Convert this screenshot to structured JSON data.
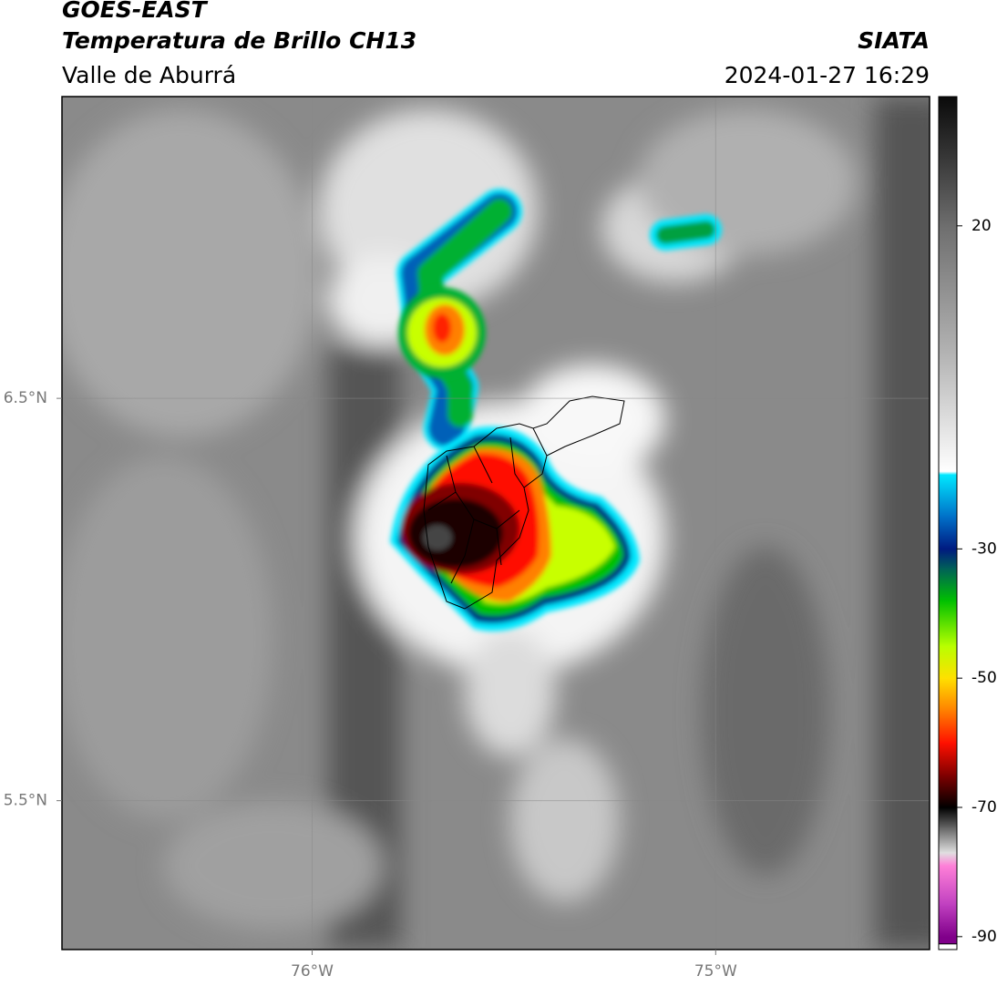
{
  "header": {
    "line1": "GOES-EAST",
    "line2": "Temperatura de Brillo CH13",
    "region": "Valle de Aburrá",
    "agency": "SIATA",
    "datetime": "2024-01-27 16:29"
  },
  "chart_data": {
    "type": "map",
    "xlim": [
      -76.62,
      -74.47
    ],
    "ylim": [
      5.13,
      7.25
    ],
    "xticks": [
      {
        "value": -76,
        "label": "76°W"
      },
      {
        "value": -75,
        "label": "75°W"
      }
    ],
    "yticks": [
      {
        "value": 6.5,
        "label": "6.5°N"
      },
      {
        "value": 5.5,
        "label": "5.5°N"
      }
    ],
    "grid": true,
    "colorbar": {
      "lim": [
        -92,
        40
      ],
      "ticks": [
        20,
        -30,
        -50,
        -70,
        -90
      ],
      "stops": [
        [
          40,
          "#0a0a0a"
        ],
        [
          30,
          "#3a3a3a"
        ],
        [
          20,
          "#6e6e6e"
        ],
        [
          0,
          "#b4b4b4"
        ],
        [
          -18,
          "#ffffff"
        ],
        [
          -18.5,
          "#00e8ff"
        ],
        [
          -25,
          "#0070c8"
        ],
        [
          -30,
          "#001a80"
        ],
        [
          -33,
          "#006058"
        ],
        [
          -38,
          "#00c000"
        ],
        [
          -45,
          "#b8ff00"
        ],
        [
          -50,
          "#ffe000"
        ],
        [
          -55,
          "#ff8000"
        ],
        [
          -60,
          "#ff1000"
        ],
        [
          -65,
          "#800000"
        ],
        [
          -70,
          "#000000"
        ],
        [
          -73,
          "#606060"
        ],
        [
          -77,
          "#e0e0e0"
        ],
        [
          -79,
          "#ff80d8"
        ],
        [
          -85,
          "#c040c0"
        ],
        [
          -90,
          "#80008a"
        ]
      ]
    }
  }
}
